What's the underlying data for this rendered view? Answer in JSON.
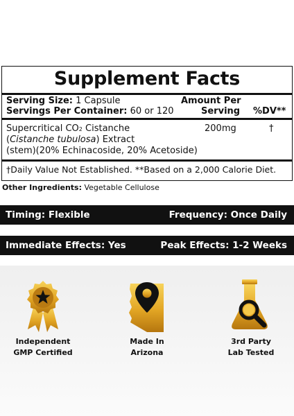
{
  "facts": {
    "title": "Supplement Facts",
    "serving_size_label": "Serving Size:",
    "serving_size_value": "1 Capsule",
    "servings_label": "Servings Per Container:",
    "servings_value": "60 or 120",
    "amount_header_1": "Amount Per",
    "amount_header_2": "Serving",
    "dv_header": "%DV**",
    "ingredient_name_a": "Supercritical CO",
    "ingredient_co_subscript": "2",
    "ingredient_name_b": "Cistanche",
    "ingredient_paren_open": "(",
    "ingredient_latin": "Cistanche tubulosa",
    "ingredient_extract": ") Extract",
    "ingredient_detail": "(stem)(20% Echinacoside, 20% Acetoside)",
    "ingredient_amount": "200mg",
    "ingredient_dv": "†",
    "footnote": "†Daily Value Not Established. **Based on a 2,000 Calorie Diet."
  },
  "other_ingredients": {
    "label": "Other Ingredients:",
    "value": "Vegetable Cellulose"
  },
  "bar1": {
    "left": "Timing: Flexible",
    "right": "Frequency: Once Daily"
  },
  "bar2": {
    "left": "Immediate Effects: Yes",
    "right": "Peak Effects: 1-2 Weeks"
  },
  "badges": [
    {
      "line1": "Independent",
      "line2": "GMP Certified",
      "icon": "award-star-icon"
    },
    {
      "line1": "Made In",
      "line2": "Arizona",
      "icon": "arizona-map-pin-icon"
    },
    {
      "line1": "3rd Party",
      "line2": "Lab Tested",
      "icon": "flask-magnifier-icon"
    }
  ],
  "colors": {
    "gold_light": "#f4c84a",
    "gold_dark": "#b5760f",
    "bar_bg": "#111111"
  }
}
